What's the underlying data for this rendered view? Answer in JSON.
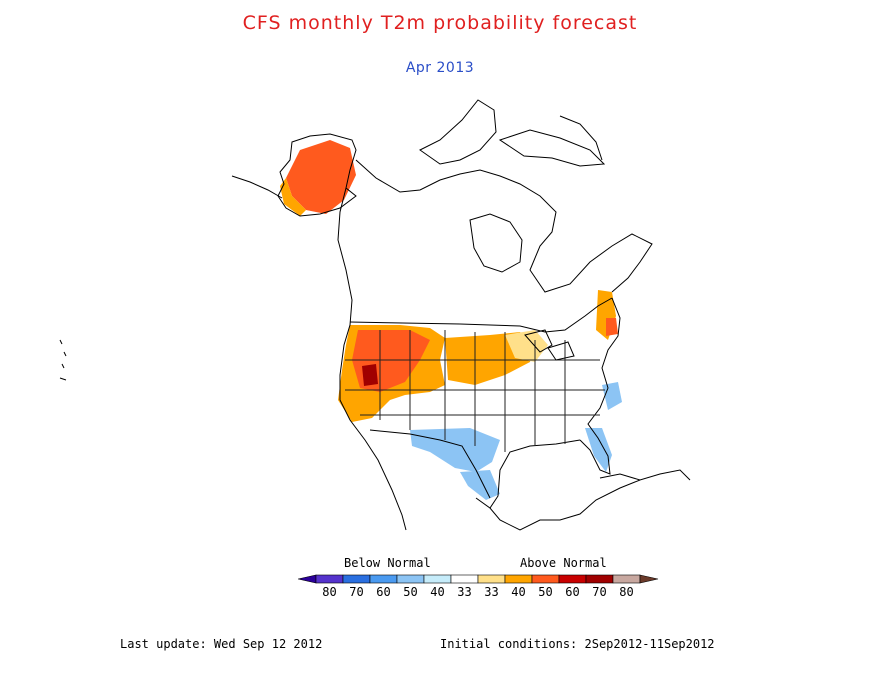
{
  "title": "CFS monthly T2m probability forecast",
  "subtitle": "Apr 2013",
  "legend": {
    "below_label": "Below Normal",
    "above_label": "Above Normal",
    "ticks": [
      "80",
      "70",
      "60",
      "50",
      "40",
      "33",
      "33",
      "40",
      "50",
      "60",
      "70",
      "80"
    ],
    "colors": [
      "#2b0099",
      "#5533cc",
      "#2a6fe0",
      "#4a9af0",
      "#8cc4f4",
      "#c6ecfa",
      "#ffffff",
      "#ffe08a",
      "#ffa500",
      "#ff5a1e",
      "#c80000",
      "#a00000",
      "#c8a8a0",
      "#6b3a2a"
    ]
  },
  "footer": {
    "last_update": "Last update: Wed Sep 12 2012",
    "initial_conditions": "Initial conditions: 2Sep2012-11Sep2012"
  }
}
